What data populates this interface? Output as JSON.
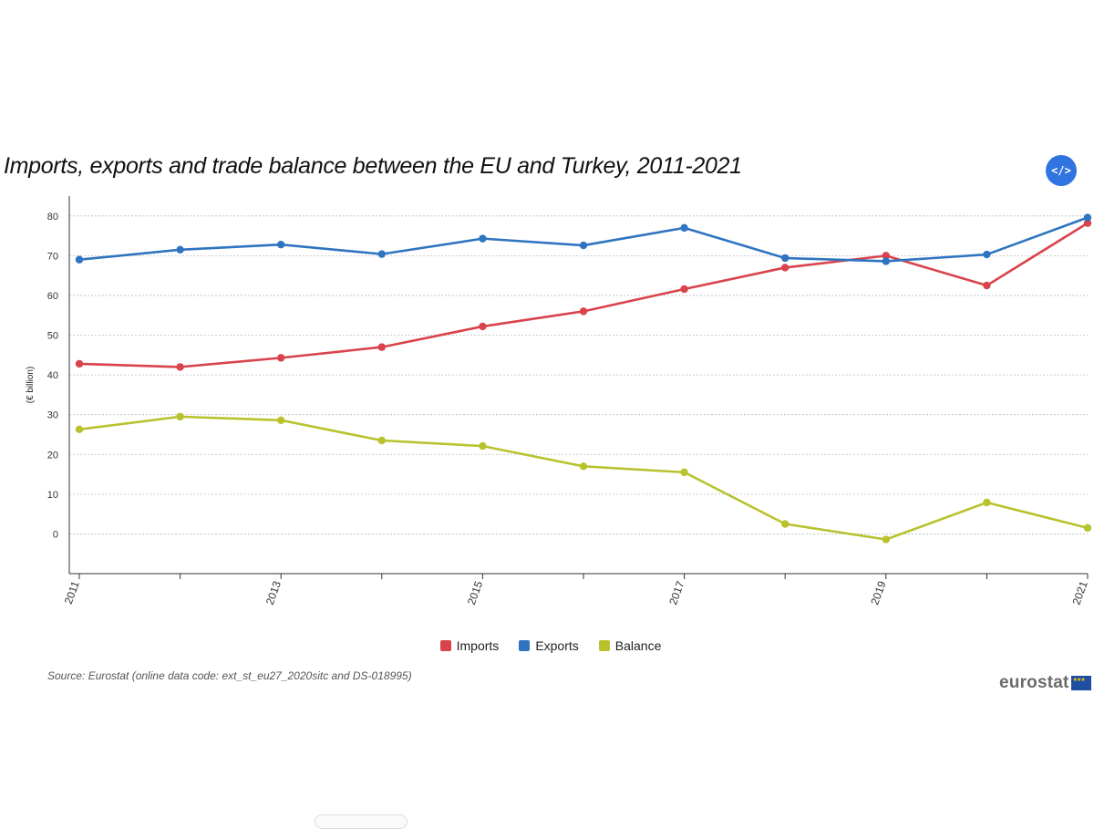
{
  "header": {
    "title": "Imports, exports and trade balance between the EU and Turkey, 2011-2021",
    "embed_icon": "code-icon",
    "embed_label": "</>"
  },
  "footer": {
    "source": "Source: Eurostat (online data code: ext_st_eu27_2020sitc and DS-018995)",
    "logo_text": "eurostat"
  },
  "colors": {
    "imports": "#d9434b",
    "exports": "#2f74c0",
    "balance": "#b9c22d",
    "embed_button": "#2f74e0"
  },
  "chart_data": {
    "type": "line",
    "title": "Imports, exports and trade balance between the EU and Turkey, 2011-2021",
    "xlabel": "",
    "ylabel": "(€ billion)",
    "x": [
      2011,
      2012,
      2013,
      2014,
      2015,
      2016,
      2017,
      2018,
      2019,
      2020,
      2021
    ],
    "x_tick_labels": [
      "2011",
      "2013",
      "2015",
      "2017",
      "2019",
      "2021"
    ],
    "y_ticks": [
      0,
      10,
      20,
      30,
      40,
      50,
      60,
      70,
      80
    ],
    "ylim": [
      -10,
      85
    ],
    "grid": true,
    "legend_position": "bottom-center",
    "series": [
      {
        "name": "Imports",
        "color": "#d9434b",
        "values": [
          42.8,
          42.0,
          44.3,
          47.0,
          52.2,
          56.0,
          61.6,
          67.0,
          70.0,
          62.5,
          78.2
        ]
      },
      {
        "name": "Exports",
        "color": "#2f74c0",
        "values": [
          69.0,
          71.5,
          72.8,
          70.4,
          74.3,
          72.6,
          77.0,
          69.4,
          68.6,
          70.3,
          79.6
        ]
      },
      {
        "name": "Balance",
        "color": "#b9c22d",
        "values": [
          26.3,
          29.5,
          28.6,
          23.5,
          22.1,
          17.0,
          15.5,
          2.5,
          -1.4,
          7.9,
          1.5
        ]
      }
    ]
  }
}
